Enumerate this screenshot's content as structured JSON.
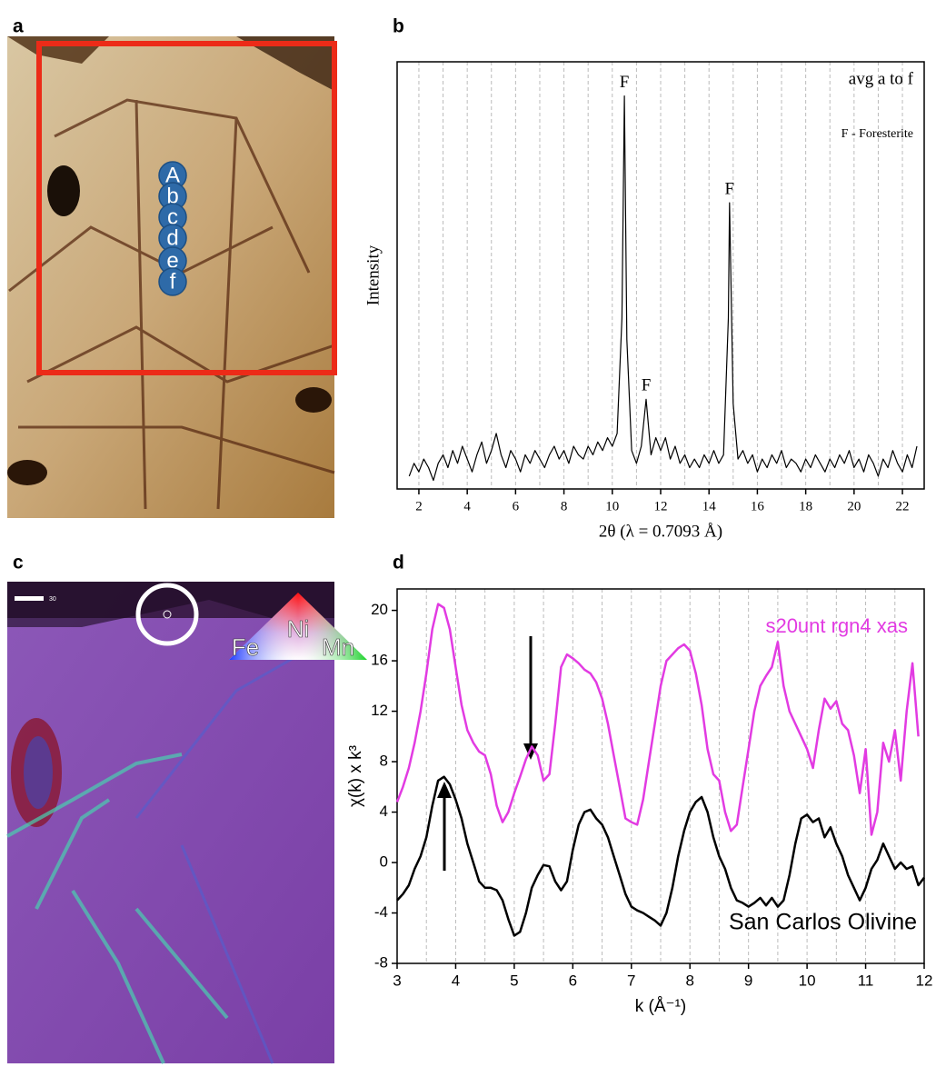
{
  "figure": {
    "panel_labels": [
      "a",
      "b",
      "c",
      "d"
    ],
    "spots": [
      "A",
      "b",
      "c",
      "d",
      "e",
      "f"
    ],
    "map": {
      "scale": "30",
      "elements": [
        "Ni",
        "Fe",
        "Mn"
      ]
    }
  },
  "chart_data": [
    {
      "type": "line",
      "xlabel": "2θ (λ = 0.7093 Å)",
      "ylabel": "Intensity",
      "title": "avg a to f",
      "note": "F - Foresterite",
      "peak_labels": [
        {
          "text": "F",
          "x": 10.5
        },
        {
          "text": "F",
          "x": 11.4
        },
        {
          "text": "F",
          "x": 14.85
        }
      ],
      "color": "#000000",
      "x": [
        1.6,
        1.8,
        2.0,
        2.2,
        2.4,
        2.6,
        2.8,
        3.0,
        3.2,
        3.4,
        3.6,
        3.8,
        4.0,
        4.2,
        4.4,
        4.6,
        4.8,
        5.0,
        5.2,
        5.4,
        5.6,
        5.8,
        6.0,
        6.2,
        6.4,
        6.6,
        6.8,
        7.0,
        7.2,
        7.4,
        7.6,
        7.8,
        8.0,
        8.2,
        8.4,
        8.6,
        8.8,
        9.0,
        9.2,
        9.4,
        9.6,
        9.8,
        10.0,
        10.2,
        10.4,
        10.5,
        10.6,
        10.8,
        11.0,
        11.2,
        11.4,
        11.6,
        11.8,
        12.0,
        12.2,
        12.4,
        12.6,
        12.8,
        13.0,
        13.2,
        13.4,
        13.6,
        13.8,
        14.0,
        14.2,
        14.4,
        14.6,
        14.8,
        14.85,
        15.0,
        15.2,
        15.4,
        15.6,
        15.8,
        16.0,
        16.2,
        16.4,
        16.6,
        16.8,
        17.0,
        17.2,
        17.4,
        17.6,
        17.8,
        18.0,
        18.2,
        18.4,
        18.6,
        18.8,
        19.0,
        19.2,
        19.4,
        19.6,
        19.8,
        20.0,
        20.2,
        20.4,
        20.6,
        20.8,
        21.0,
        21.2,
        21.4,
        21.6,
        21.8,
        22.0,
        22.2,
        22.4,
        22.6
      ],
      "values": [
        3,
        6,
        4,
        7,
        5,
        2,
        6,
        8,
        5,
        9,
        6,
        10,
        7,
        4,
        8,
        11,
        6,
        9,
        13,
        8,
        5,
        9,
        7,
        4,
        8,
        6,
        9,
        7,
        5,
        8,
        10,
        7,
        9,
        6,
        10,
        8,
        7,
        10,
        8,
        11,
        9,
        12,
        10,
        13,
        40,
        92,
        35,
        9,
        6,
        10,
        21,
        8,
        12,
        9,
        12,
        7,
        10,
        6,
        8,
        5,
        7,
        5,
        8,
        6,
        9,
        6,
        8,
        40,
        67,
        20,
        7,
        9,
        6,
        8,
        4,
        7,
        5,
        8,
        6,
        9,
        5,
        7,
        6,
        4,
        7,
        5,
        8,
        6,
        4,
        7,
        5,
        8,
        6,
        9,
        5,
        7,
        4,
        8,
        6,
        3,
        7,
        5,
        9,
        6,
        4,
        8,
        5,
        10
      ],
      "xlim": [
        1.1,
        22.9
      ],
      "ylim": [
        0,
        100
      ],
      "xticks": [
        2,
        4,
        6,
        8,
        10,
        12,
        14,
        16,
        18,
        20,
        22
      ],
      "xgrid": [
        2,
        3,
        4,
        5,
        6,
        7,
        8,
        9,
        10,
        11,
        12,
        13,
        14,
        15,
        16,
        17,
        18,
        19,
        20,
        21,
        22
      ]
    },
    {
      "type": "line",
      "xlabel": "k (Å⁻¹)",
      "ylabel": "χ(k) x k³",
      "x": [
        3.0,
        3.1,
        3.2,
        3.3,
        3.4,
        3.5,
        3.6,
        3.7,
        3.8,
        3.9,
        4.0,
        4.1,
        4.2,
        4.3,
        4.4,
        4.5,
        4.6,
        4.7,
        4.8,
        4.9,
        5.0,
        5.1,
        5.2,
        5.3,
        5.4,
        5.5,
        5.6,
        5.7,
        5.8,
        5.9,
        6.0,
        6.1,
        6.2,
        6.3,
        6.4,
        6.5,
        6.6,
        6.7,
        6.8,
        6.9,
        7.0,
        7.1,
        7.2,
        7.3,
        7.4,
        7.5,
        7.6,
        7.7,
        7.8,
        7.9,
        8.0,
        8.1,
        8.2,
        8.3,
        8.4,
        8.5,
        8.6,
        8.7,
        8.8,
        8.9,
        9.0,
        9.1,
        9.2,
        9.3,
        9.4,
        9.5,
        9.6,
        9.7,
        9.8,
        9.9,
        10.0,
        10.1,
        10.2,
        10.3,
        10.4,
        10.5,
        10.6,
        10.7,
        10.8,
        10.9,
        11.0,
        11.1,
        11.2,
        11.3,
        11.4,
        11.5,
        11.6,
        11.7,
        11.8,
        11.9,
        12.0
      ],
      "series": [
        {
          "name": "s20unt rgn4 xas",
          "color": "#e23be2",
          "values": [
            4.8,
            6,
            7.5,
            9.5,
            12,
            15,
            18.5,
            20.5,
            20.2,
            18.5,
            15.5,
            12.5,
            10.5,
            9.5,
            8.8,
            8.5,
            7,
            4.5,
            3.2,
            4,
            5.5,
            6.8,
            8.2,
            9.2,
            8.5,
            6.5,
            7,
            11,
            15.5,
            16.5,
            16.2,
            15.8,
            15.3,
            15,
            14.3,
            13,
            11,
            8.5,
            6,
            3.5,
            3.2,
            3,
            5,
            8,
            11,
            14,
            16,
            16.5,
            17,
            17.3,
            16.8,
            15,
            12.5,
            9,
            7,
            6.5,
            4,
            2.5,
            3,
            6,
            9,
            12,
            14,
            14.8,
            15.5,
            17.5,
            14,
            12,
            11,
            10,
            9,
            7.5,
            10.5,
            13,
            12.2,
            12.8,
            11,
            10.5,
            8.5,
            5.5,
            9,
            2.2,
            4,
            9.5,
            8,
            10.5,
            6.5,
            12,
            15.8,
            10,
            null
          ]
        },
        {
          "name": "San Carlos Olivine",
          "color": "#000000",
          "values": [
            -3,
            -2.5,
            -1.8,
            -0.5,
            0.5,
            2,
            4.5,
            6.5,
            6.8,
            6.2,
            5,
            3.5,
            1.5,
            0,
            -1.5,
            -2,
            -2,
            -2.2,
            -3,
            -4.5,
            -5.8,
            -5.5,
            -4,
            -2,
            -1,
            -0.2,
            -0.3,
            -1.5,
            -2.2,
            -1.5,
            1,
            3,
            4,
            4.2,
            3.5,
            3,
            2,
            0.5,
            -1,
            -2.5,
            -3.5,
            -3.8,
            -4,
            -4.3,
            -4.6,
            -5,
            -4,
            -2,
            0.5,
            2.5,
            4,
            4.8,
            5.2,
            4,
            2,
            0.5,
            -0.5,
            -2,
            -3,
            -3.2,
            -3.5,
            -3.2,
            -2.8,
            -3.4,
            -2.8,
            -3.5,
            -3,
            -1,
            1.5,
            3.5,
            3.8,
            3.2,
            3.5,
            2,
            2.8,
            1.5,
            0.5,
            -1,
            -2,
            -3,
            -2,
            -0.5,
            0.2,
            1.5,
            0.5,
            -0.5,
            0,
            -0.5,
            -0.3,
            -1.8,
            -1.2
          ]
        }
      ],
      "xlim": [
        3,
        12
      ],
      "ylim": [
        -8,
        21.7
      ],
      "xticks": [
        3,
        4,
        5,
        6,
        7,
        8,
        9,
        10,
        11,
        12
      ],
      "yticks": [
        -8,
        -4,
        0,
        4,
        8,
        12,
        16,
        20
      ],
      "xgrid": [
        3.5,
        4,
        4.5,
        5,
        5.5,
        6,
        6.5,
        7,
        7.5,
        8,
        8.5,
        9,
        9.5,
        10,
        10.5,
        11,
        11.5
      ]
    }
  ]
}
